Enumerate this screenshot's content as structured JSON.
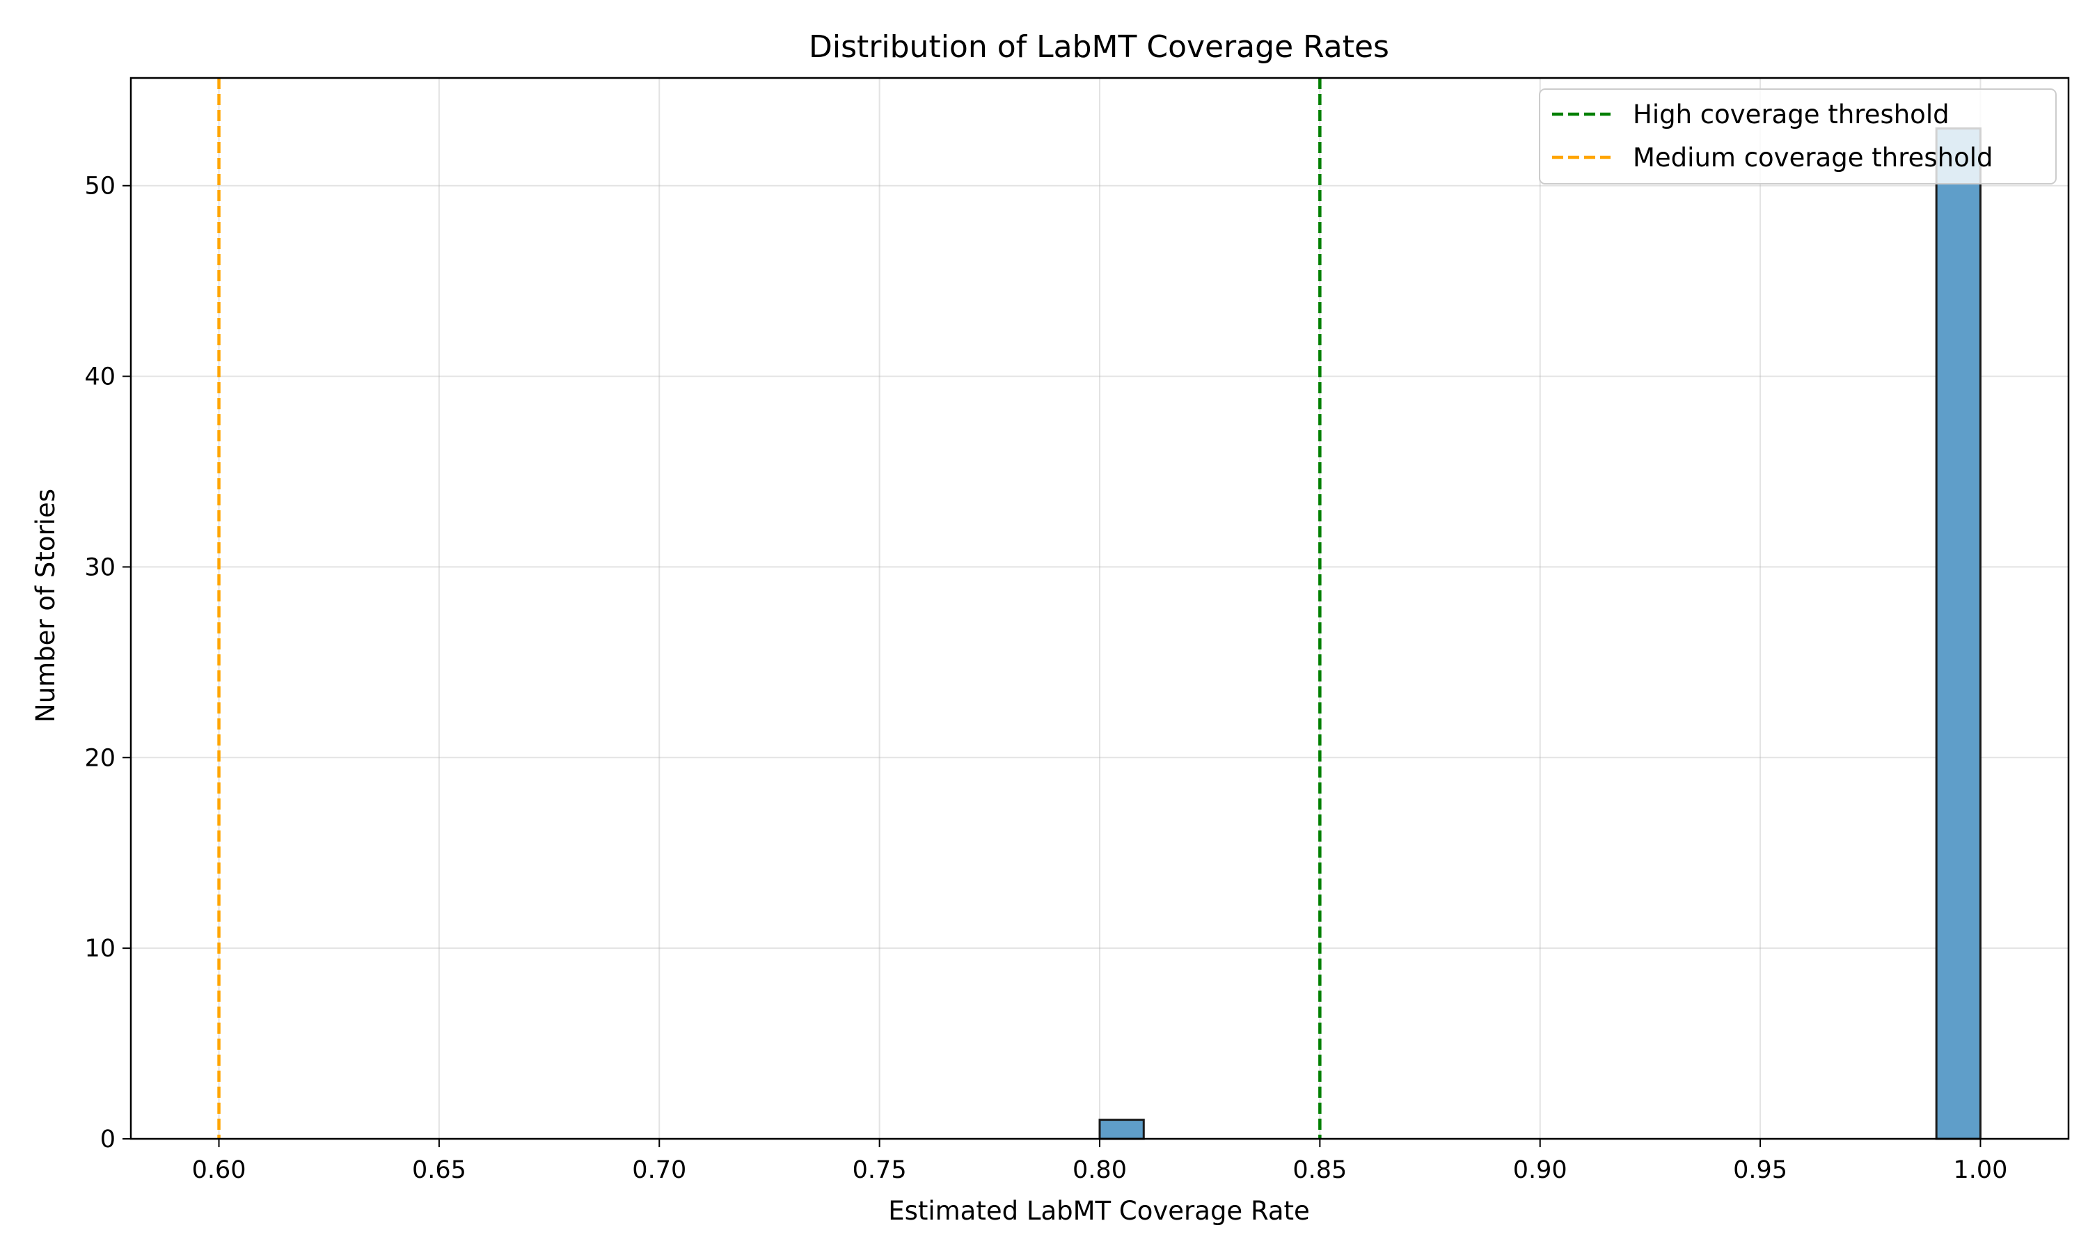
{
  "chart_data": {
    "type": "bar",
    "title": "Distribution of LabMT Coverage Rates",
    "xlabel": "Estimated LabMT Coverage Rate",
    "ylabel": "Number of Stories",
    "xlim": [
      0.58,
      1.02
    ],
    "ylim": [
      0,
      55.65
    ],
    "xticks": [
      0.6,
      0.65,
      0.7,
      0.75,
      0.8,
      0.85,
      0.9,
      0.95,
      1.0
    ],
    "xtick_labels": [
      "0.60",
      "0.65",
      "0.70",
      "0.75",
      "0.80",
      "0.85",
      "0.90",
      "0.95",
      "1.00"
    ],
    "yticks": [
      0,
      10,
      20,
      30,
      40,
      50
    ],
    "ytick_labels": [
      "0",
      "10",
      "20",
      "30",
      "40",
      "50"
    ],
    "grid": true,
    "bars": [
      {
        "x_start": 0.8,
        "x_end": 0.81,
        "count": 1
      },
      {
        "x_start": 0.81,
        "x_end": 0.99,
        "count": 0
      },
      {
        "x_start": 0.99,
        "x_end": 1.0,
        "count": 53
      }
    ],
    "bar_color": "#5f9ec9",
    "thresholds": [
      {
        "name": "High coverage threshold",
        "x": 0.85,
        "color": "#007f00"
      },
      {
        "name": "Medium coverage threshold",
        "x": 0.6,
        "color": "#ffa500"
      }
    ],
    "legend_position": "top-right"
  }
}
